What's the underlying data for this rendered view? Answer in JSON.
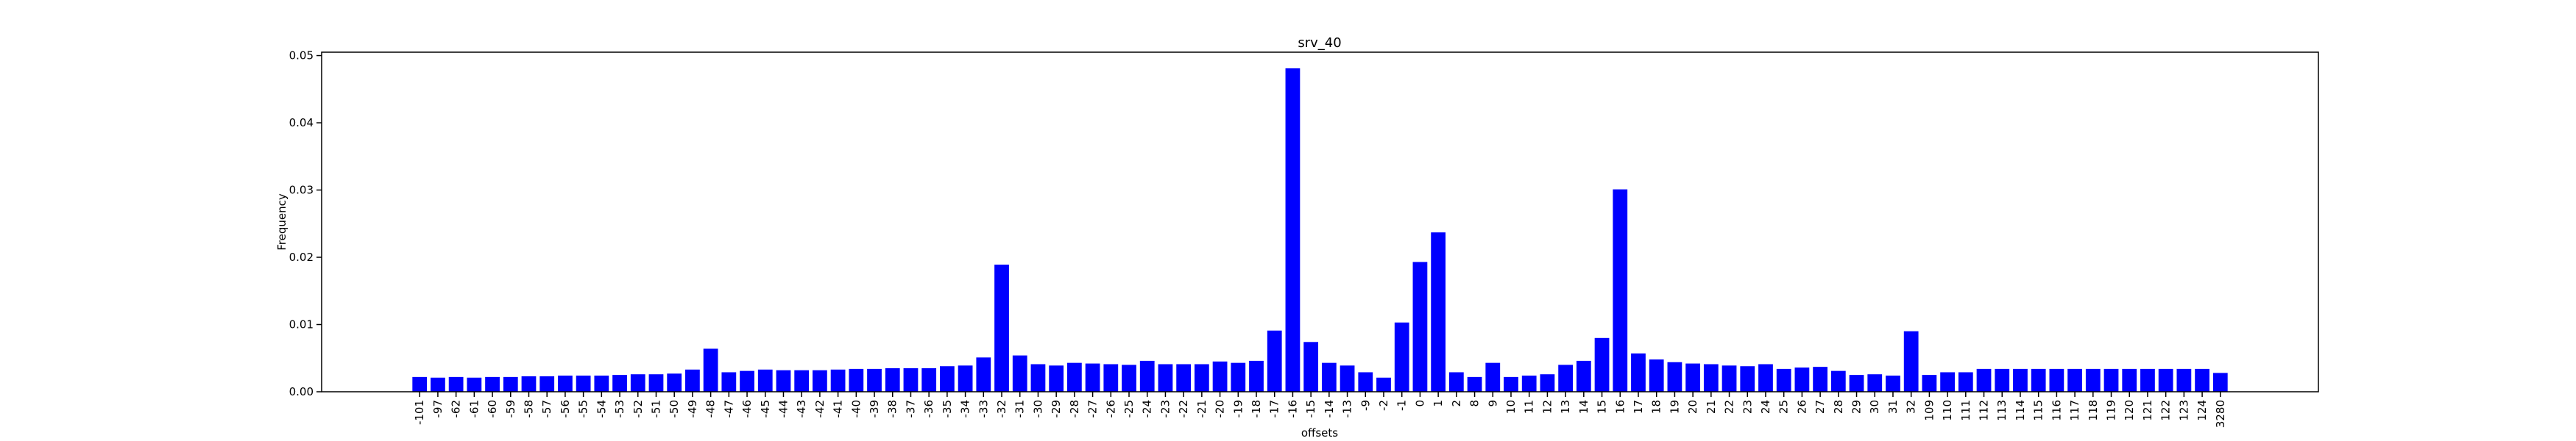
{
  "chart_data": {
    "type": "bar",
    "title": "srv_40",
    "xlabel": "offsets",
    "ylabel": "Frequency",
    "categories": [
      "-101",
      "-97",
      "-62",
      "-61",
      "-60",
      "-59",
      "-58",
      "-57",
      "-56",
      "-55",
      "-54",
      "-53",
      "-52",
      "-51",
      "-50",
      "-49",
      "-48",
      "-47",
      "-46",
      "-45",
      "-44",
      "-43",
      "-42",
      "-41",
      "-40",
      "-39",
      "-38",
      "-37",
      "-36",
      "-35",
      "-34",
      "-33",
      "-32",
      "-31",
      "-30",
      "-29",
      "-28",
      "-27",
      "-26",
      "-25",
      "-24",
      "-23",
      "-22",
      "-21",
      "-20",
      "-19",
      "-18",
      "-17",
      "-16",
      "-15",
      "-14",
      "-13",
      "-9",
      "-2",
      "-1",
      "0",
      "1",
      "2",
      "8",
      "9",
      "10",
      "11",
      "12",
      "13",
      "14",
      "15",
      "16",
      "17",
      "18",
      "19",
      "20",
      "21",
      "22",
      "23",
      "24",
      "25",
      "26",
      "27",
      "28",
      "29",
      "30",
      "31",
      "32",
      "109",
      "110",
      "111",
      "112",
      "113",
      "114",
      "115",
      "116",
      "117",
      "118",
      "119",
      "120",
      "121",
      "122",
      "123",
      "124",
      "3280"
    ],
    "values": [
      0.0022,
      0.0021,
      0.0022,
      0.0021,
      0.0022,
      0.0022,
      0.0023,
      0.0023,
      0.0024,
      0.0024,
      0.0024,
      0.0025,
      0.0026,
      0.0026,
      0.0027,
      0.0033,
      0.0064,
      0.0029,
      0.0031,
      0.0033,
      0.0032,
      0.0032,
      0.0032,
      0.0033,
      0.0034,
      0.0034,
      0.0035,
      0.0035,
      0.0035,
      0.0038,
      0.0039,
      0.0051,
      0.0189,
      0.0054,
      0.0041,
      0.0039,
      0.0043,
      0.0042,
      0.0041,
      0.004,
      0.0046,
      0.0041,
      0.0041,
      0.0041,
      0.0045,
      0.0043,
      0.0046,
      0.0091,
      0.0481,
      0.0074,
      0.0043,
      0.0039,
      0.0029,
      0.0021,
      0.0103,
      0.0193,
      0.0237,
      0.0029,
      0.0022,
      0.0043,
      0.0022,
      0.0024,
      0.0026,
      0.004,
      0.0046,
      0.008,
      0.0301,
      0.0057,
      0.0048,
      0.0044,
      0.0042,
      0.0041,
      0.0039,
      0.0038,
      0.0041,
      0.0034,
      0.0036,
      0.0037,
      0.0031,
      0.0025,
      0.0026,
      0.0024,
      0.009,
      0.0025,
      0.0029,
      0.0029,
      0.0034,
      0.0034,
      0.0034,
      0.0034,
      0.0034,
      0.0034,
      0.0034,
      0.0034,
      0.0034,
      0.0034,
      0.0034,
      0.0034,
      0.0034,
      0.0028
    ],
    "color": "#0000ff",
    "ylim": [
      0,
      0.0505
    ],
    "yticks": [
      {
        "value": 0,
        "label": "0.00"
      },
      {
        "value": 0.01,
        "label": "0.01"
      },
      {
        "value": 0.02,
        "label": "0.02"
      },
      {
        "value": 0.03,
        "label": "0.03"
      },
      {
        "value": 0.04,
        "label": "0.04"
      },
      {
        "value": 0.05,
        "label": "0.05"
      }
    ],
    "grid": false
  }
}
